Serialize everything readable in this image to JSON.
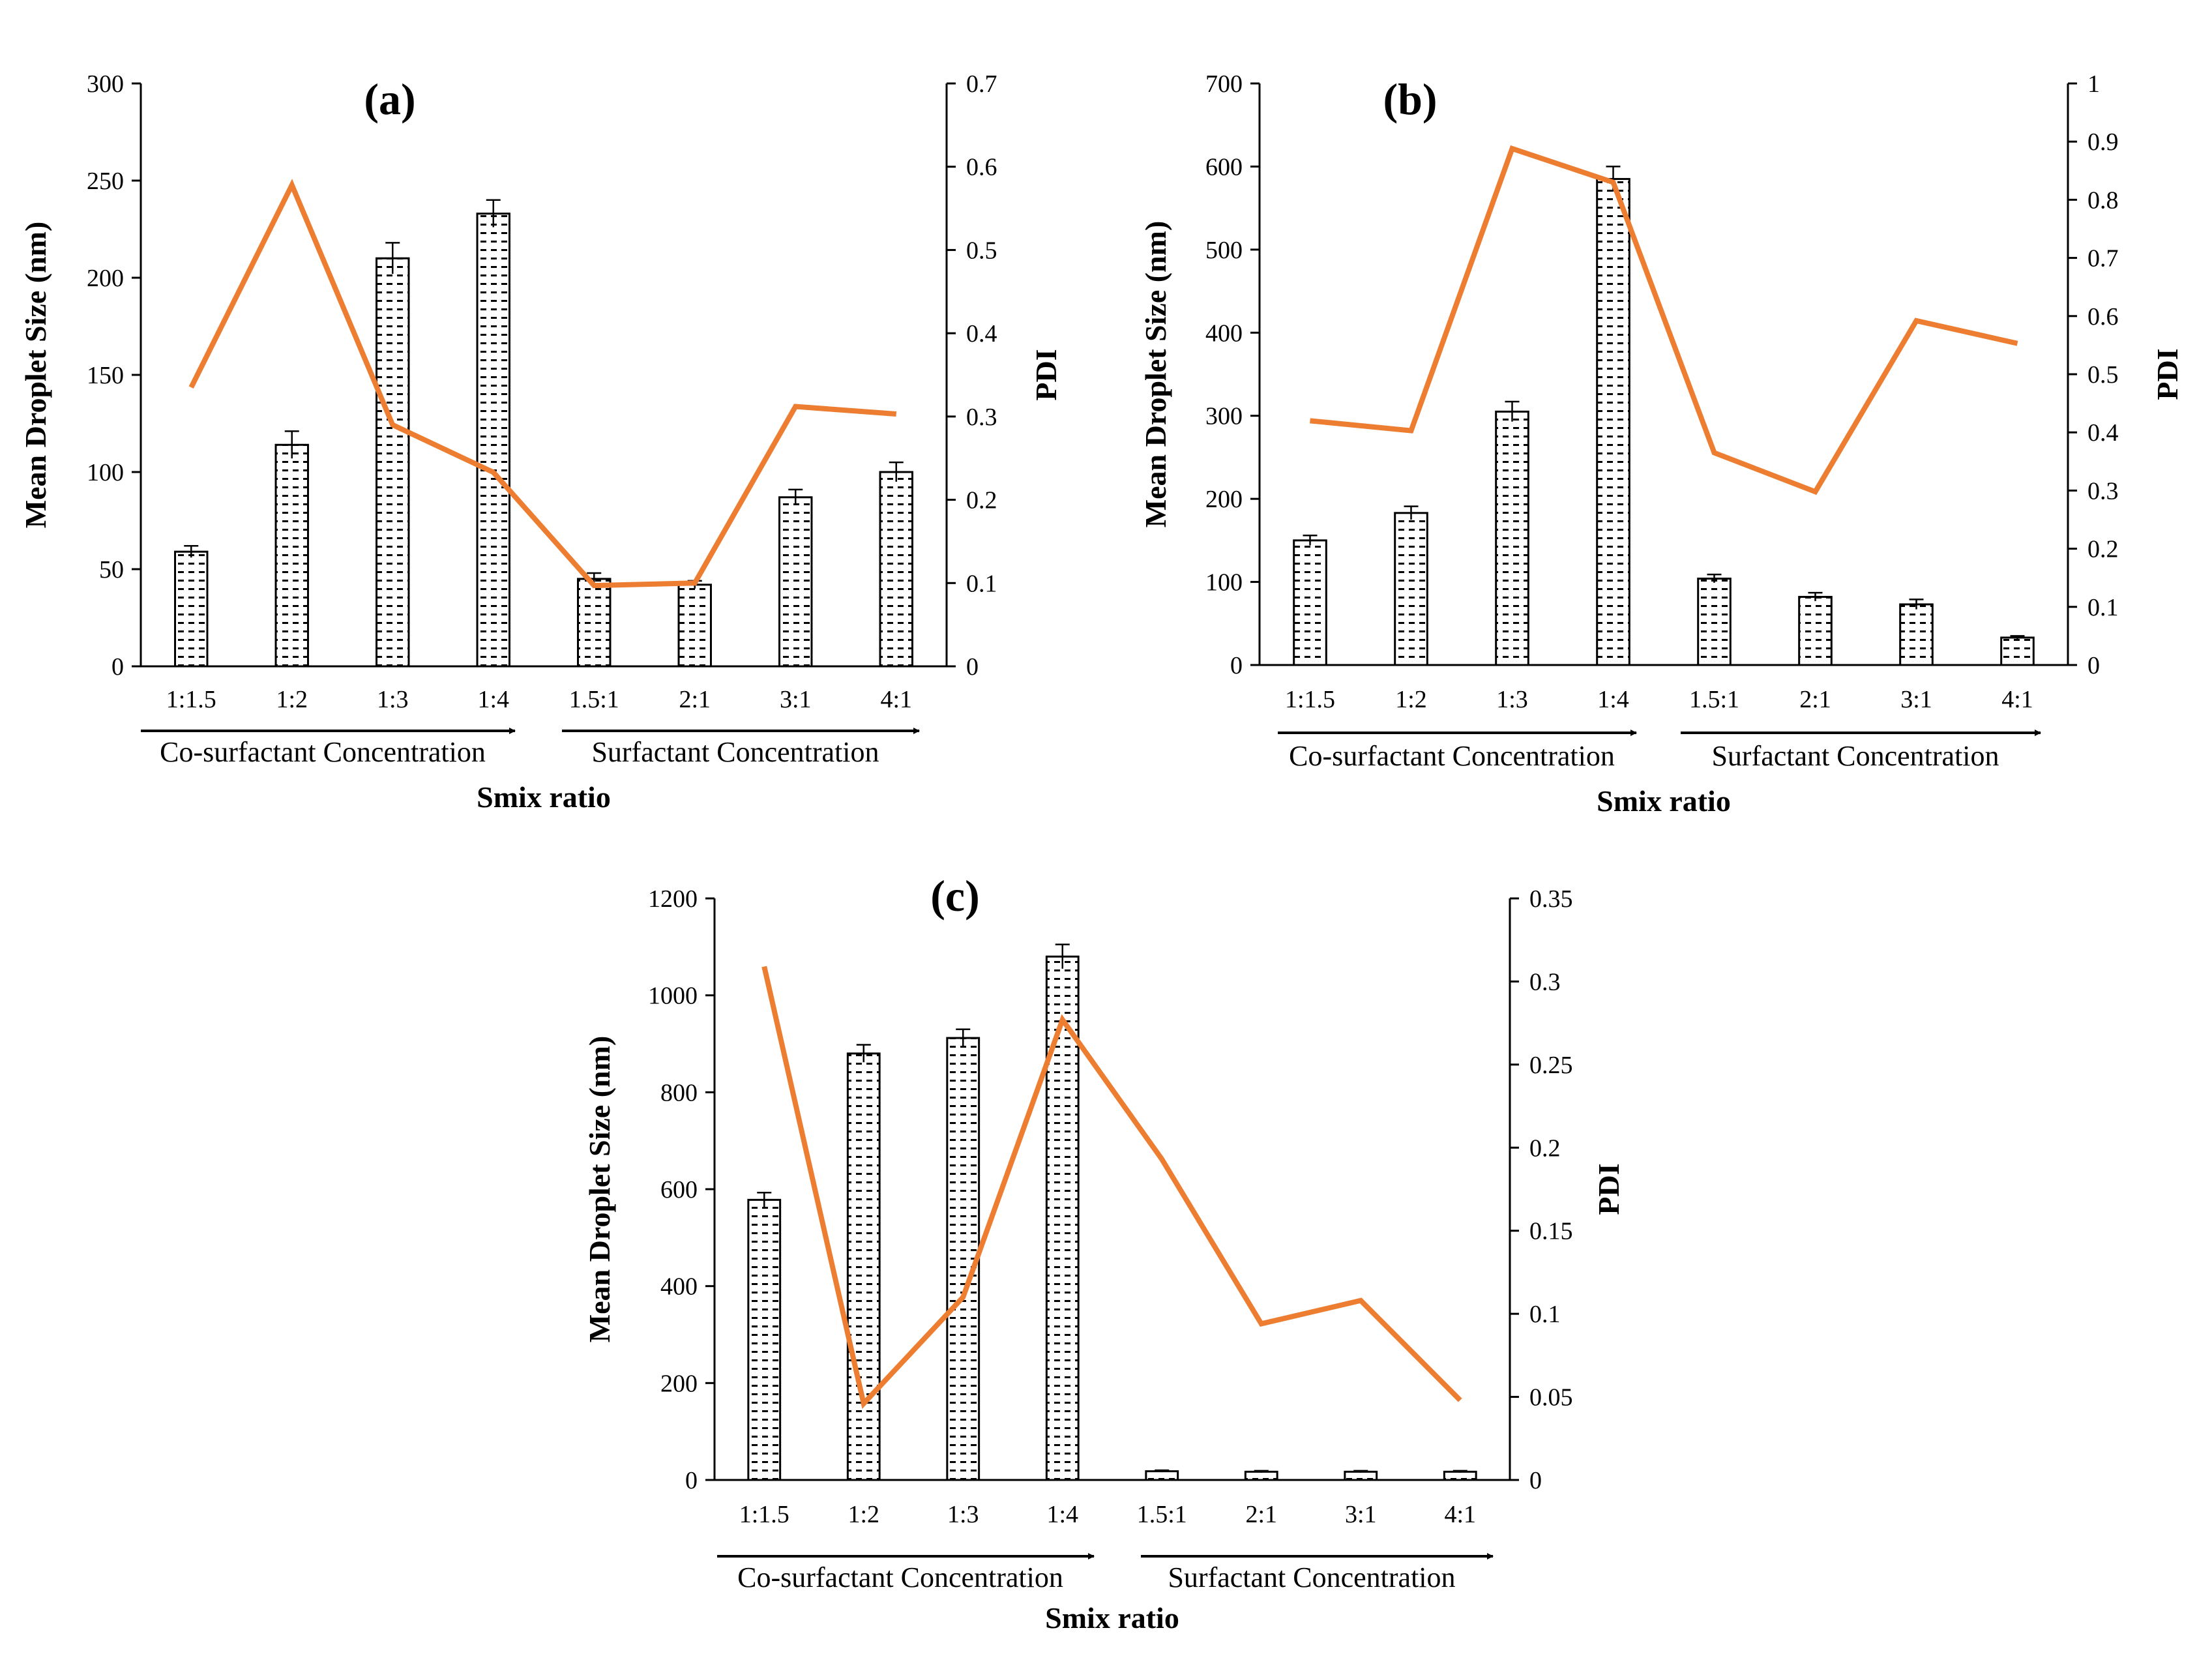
{
  "colors": {
    "pdi_line": "#ED7D31",
    "axis": "#000000",
    "bar_fill": "#ffffff",
    "bar_pattern": "#000000"
  },
  "chart_data": [
    {
      "type": "bar",
      "panel_label": "(a)",
      "categories": [
        "1:1.5",
        "1:2",
        "1:3",
        "1:4",
        "1.5:1",
        "2:1",
        "3:1",
        "4:1"
      ],
      "series": [
        {
          "name": "Mean Droplet Size (nm)",
          "axis": "left",
          "type": "bar",
          "values": [
            59,
            114,
            210,
            233,
            45,
            42,
            87,
            100
          ],
          "errors": [
            3,
            7,
            8,
            7,
            3,
            2,
            4,
            5
          ]
        },
        {
          "name": "PDI",
          "axis": "right",
          "type": "line",
          "values": [
            0.335,
            0.578,
            0.29,
            0.233,
            0.097,
            0.1,
            0.312,
            0.303
          ]
        }
      ],
      "ylabel": "Mean Droplet Size (nm)",
      "y2label": "PDI",
      "xlabel": "Smix ratio",
      "ylim": [
        0,
        300
      ],
      "yticks": [
        0,
        50,
        100,
        150,
        200,
        250,
        300
      ],
      "y2lim": [
        0,
        0.7
      ],
      "y2ticks": [
        0,
        0.1,
        0.2,
        0.3,
        0.4,
        0.5,
        0.6,
        0.7
      ],
      "arrow_labels": [
        "Co-surfactant  Concentration",
        "Surfactant  Concentration"
      ]
    },
    {
      "type": "bar",
      "panel_label": "(b)",
      "categories": [
        "1:1.5",
        "1:2",
        "1:3",
        "1:4",
        "1.5:1",
        "2:1",
        "3:1",
        "4:1"
      ],
      "series": [
        {
          "name": "Mean Droplet Size (nm)",
          "axis": "left",
          "type": "bar",
          "values": [
            150,
            183,
            305,
            585,
            104,
            82,
            73,
            33
          ],
          "errors": [
            6,
            8,
            12,
            15,
            5,
            5,
            6,
            2
          ]
        },
        {
          "name": "PDI",
          "axis": "right",
          "type": "line",
          "values": [
            0.42,
            0.403,
            0.888,
            0.83,
            0.365,
            0.298,
            0.592,
            0.553
          ]
        }
      ],
      "ylabel": "Mean Droplet Size (nm)",
      "y2label": "PDI",
      "xlabel": "Smix ratio",
      "ylim": [
        0,
        700
      ],
      "yticks": [
        0,
        100,
        200,
        300,
        400,
        500,
        600,
        700
      ],
      "y2lim": [
        0,
        1
      ],
      "y2ticks": [
        0,
        0.1,
        0.2,
        0.3,
        0.4,
        0.5,
        0.6,
        0.7,
        0.8,
        0.9,
        1
      ],
      "arrow_labels": [
        "Co-surfactant  Concentration",
        "Surfactant  Concentration"
      ]
    },
    {
      "type": "bar",
      "panel_label": "(c)",
      "categories": [
        "1:1.5",
        "1:2",
        "1:3",
        "1:4",
        "1.5:1",
        "2:1",
        "3:1",
        "4:1"
      ],
      "series": [
        {
          "name": "Mean Droplet Size (nm)",
          "axis": "left",
          "type": "bar",
          "values": [
            578,
            880,
            912,
            1080,
            18,
            17,
            17,
            17
          ],
          "errors": [
            15,
            18,
            18,
            25,
            2,
            2,
            2,
            2
          ]
        },
        {
          "name": "PDI",
          "axis": "right",
          "type": "line",
          "values": [
            0.309,
            0.046,
            0.11,
            0.277,
            0.193,
            0.094,
            0.108,
            0.048
          ]
        }
      ],
      "ylabel": "Mean Droplet Size (nm)",
      "y2label": "PDI",
      "xlabel": "Smix ratio",
      "ylim": [
        0,
        1200
      ],
      "yticks": [
        0,
        200,
        400,
        600,
        800,
        1000,
        1200
      ],
      "y2lim": [
        0,
        0.35
      ],
      "y2ticks": [
        0,
        0.05,
        0.1,
        0.15,
        0.2,
        0.25,
        0.3,
        0.35
      ],
      "arrow_labels": [
        "Co-surfactant  Concentration",
        "Surfactant  Concentration"
      ]
    }
  ]
}
